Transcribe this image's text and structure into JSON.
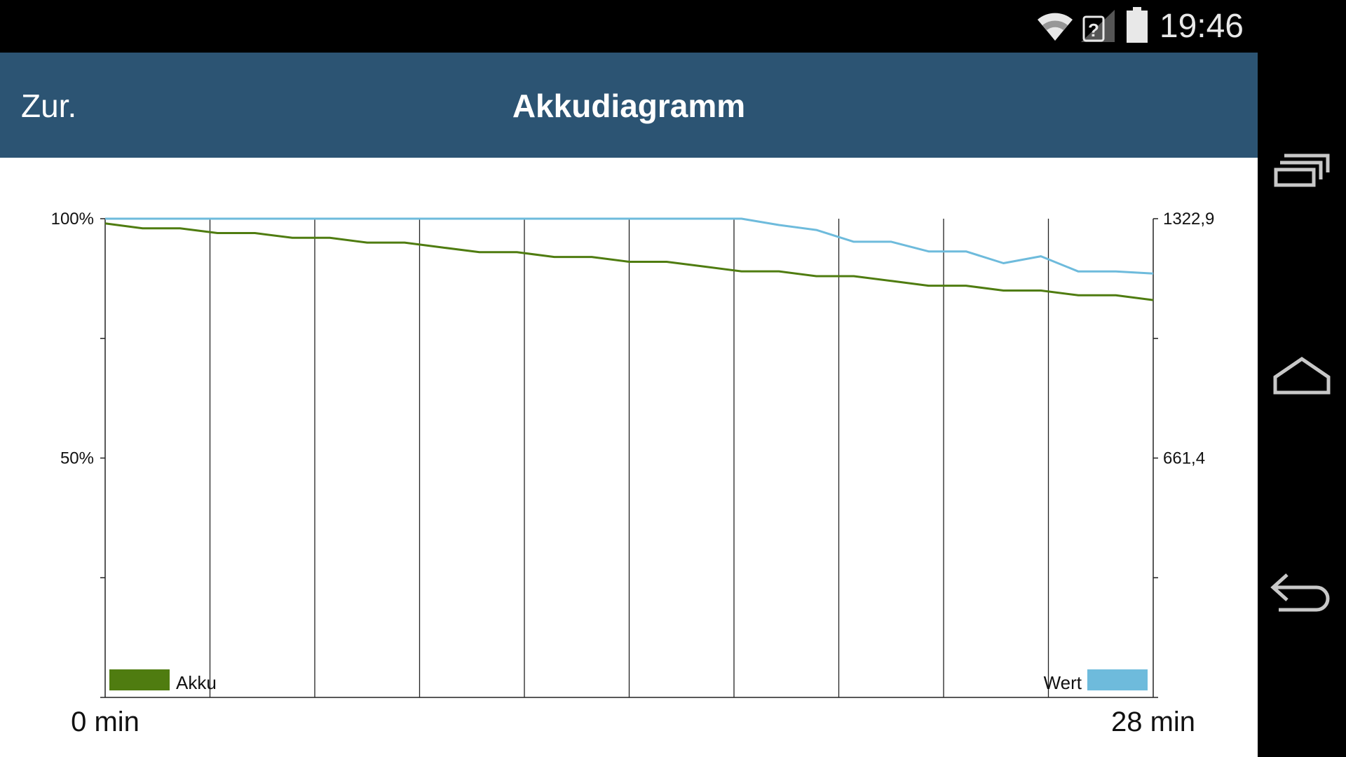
{
  "status_bar": {
    "time": "19:46",
    "icons": [
      "wifi-icon",
      "no-sim-signal-icon",
      "battery-icon"
    ]
  },
  "app_bar": {
    "back_label": "Zur.",
    "title": "Akkudiagramm"
  },
  "navigation": {
    "buttons": [
      "recent-apps-icon",
      "home-icon",
      "back-icon"
    ]
  },
  "colors": {
    "app_bar": "#2c5473",
    "akku_series": "#4f7c10",
    "wert_series": "#6ebbdc"
  },
  "chart_data": {
    "type": "line",
    "title": "",
    "x_start_label": "0 min",
    "x_end_label": "28 min",
    "xlim": [
      0,
      28
    ],
    "y_left": {
      "ticks": [
        {
          "value": 100,
          "label": "100%"
        },
        {
          "value": 50,
          "label": "50%"
        }
      ],
      "range": [
        0,
        100
      ]
    },
    "y_right": {
      "ticks": [
        {
          "value": 1322.9,
          "label": "1322,9"
        },
        {
          "value": 661.4,
          "label": "661,4"
        }
      ],
      "range": [
        0,
        1322.9
      ]
    },
    "vertical_grid": true,
    "legend": [
      {
        "name": "Akku",
        "position": "bottom-left"
      },
      {
        "name": "Wert",
        "position": "bottom-right"
      }
    ],
    "series": [
      {
        "name": "Akku",
        "axis": "left",
        "x": [
          0,
          1,
          2,
          3,
          4,
          5,
          6,
          7,
          8,
          9,
          10,
          11,
          12,
          13,
          14,
          15,
          16,
          17,
          18,
          19,
          20,
          21,
          22,
          23,
          24,
          25,
          26,
          27,
          28
        ],
        "values": [
          99,
          98,
          98,
          97,
          97,
          96,
          96,
          95,
          95,
          94,
          93,
          93,
          92,
          92,
          91,
          91,
          90,
          89,
          89,
          88,
          88,
          87,
          86,
          86,
          85,
          85,
          84,
          84,
          83
        ]
      },
      {
        "name": "Wert",
        "axis": "right",
        "x": [
          0,
          1,
          2,
          3,
          4,
          5,
          6,
          7,
          8,
          9,
          10,
          11,
          12,
          13,
          14,
          15,
          16,
          17,
          18,
          19,
          20,
          21,
          22,
          23,
          24,
          25,
          26,
          27,
          28
        ],
        "values": [
          1322.9,
          1322.9,
          1322.9,
          1322.9,
          1322.9,
          1322.9,
          1322.9,
          1322.9,
          1322.9,
          1322.9,
          1322.9,
          1322.9,
          1322.9,
          1322.9,
          1322.9,
          1322.9,
          1322.9,
          1322.9,
          1305.4,
          1291.8,
          1259.1,
          1259.1,
          1232.5,
          1232.5,
          1199.9,
          1219.0,
          1177.0,
          1177.0,
          1171.5
        ]
      }
    ]
  }
}
